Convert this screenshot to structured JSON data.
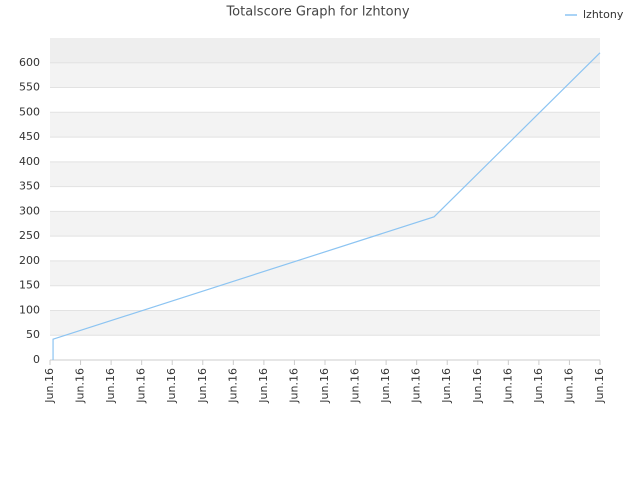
{
  "chart_data": {
    "type": "line",
    "title": "Totalscore Graph for lzhtony",
    "x": [
      0.1,
      0.1,
      12.57,
      18
    ],
    "series": [
      {
        "name": "lzhtony",
        "color": "#8cc4f2",
        "values": [
          0,
          42,
          289,
          620
        ]
      }
    ],
    "xlim": [
      0,
      18
    ],
    "xticks": [
      {
        "value": 0,
        "label": "Jun.16"
      },
      {
        "value": 1,
        "label": "Jun.16"
      },
      {
        "value": 2,
        "label": "Jun.16"
      },
      {
        "value": 3,
        "label": "Jun.16"
      },
      {
        "value": 4,
        "label": "Jun.16"
      },
      {
        "value": 5,
        "label": "Jun.16"
      },
      {
        "value": 6,
        "label": "Jun.16"
      },
      {
        "value": 7,
        "label": "Jun.16"
      },
      {
        "value": 8,
        "label": "Jun.16"
      },
      {
        "value": 9,
        "label": "Jun.16"
      },
      {
        "value": 10,
        "label": "Jun.16"
      },
      {
        "value": 11,
        "label": "Jun.16"
      },
      {
        "value": 12,
        "label": "Jun.16"
      },
      {
        "value": 13,
        "label": "Jun.16"
      },
      {
        "value": 14,
        "label": "Jun.16"
      },
      {
        "value": 15,
        "label": "Jun.16"
      },
      {
        "value": 16,
        "label": "Jun.16"
      },
      {
        "value": 17,
        "label": "Jun.16"
      },
      {
        "value": 18,
        "label": "Jun.16"
      }
    ],
    "ylim": [
      0,
      650
    ],
    "yticks": [
      0,
      50,
      100,
      150,
      200,
      250,
      300,
      350,
      400,
      450,
      500,
      550,
      600
    ],
    "grid": true,
    "legend": "top-right"
  }
}
